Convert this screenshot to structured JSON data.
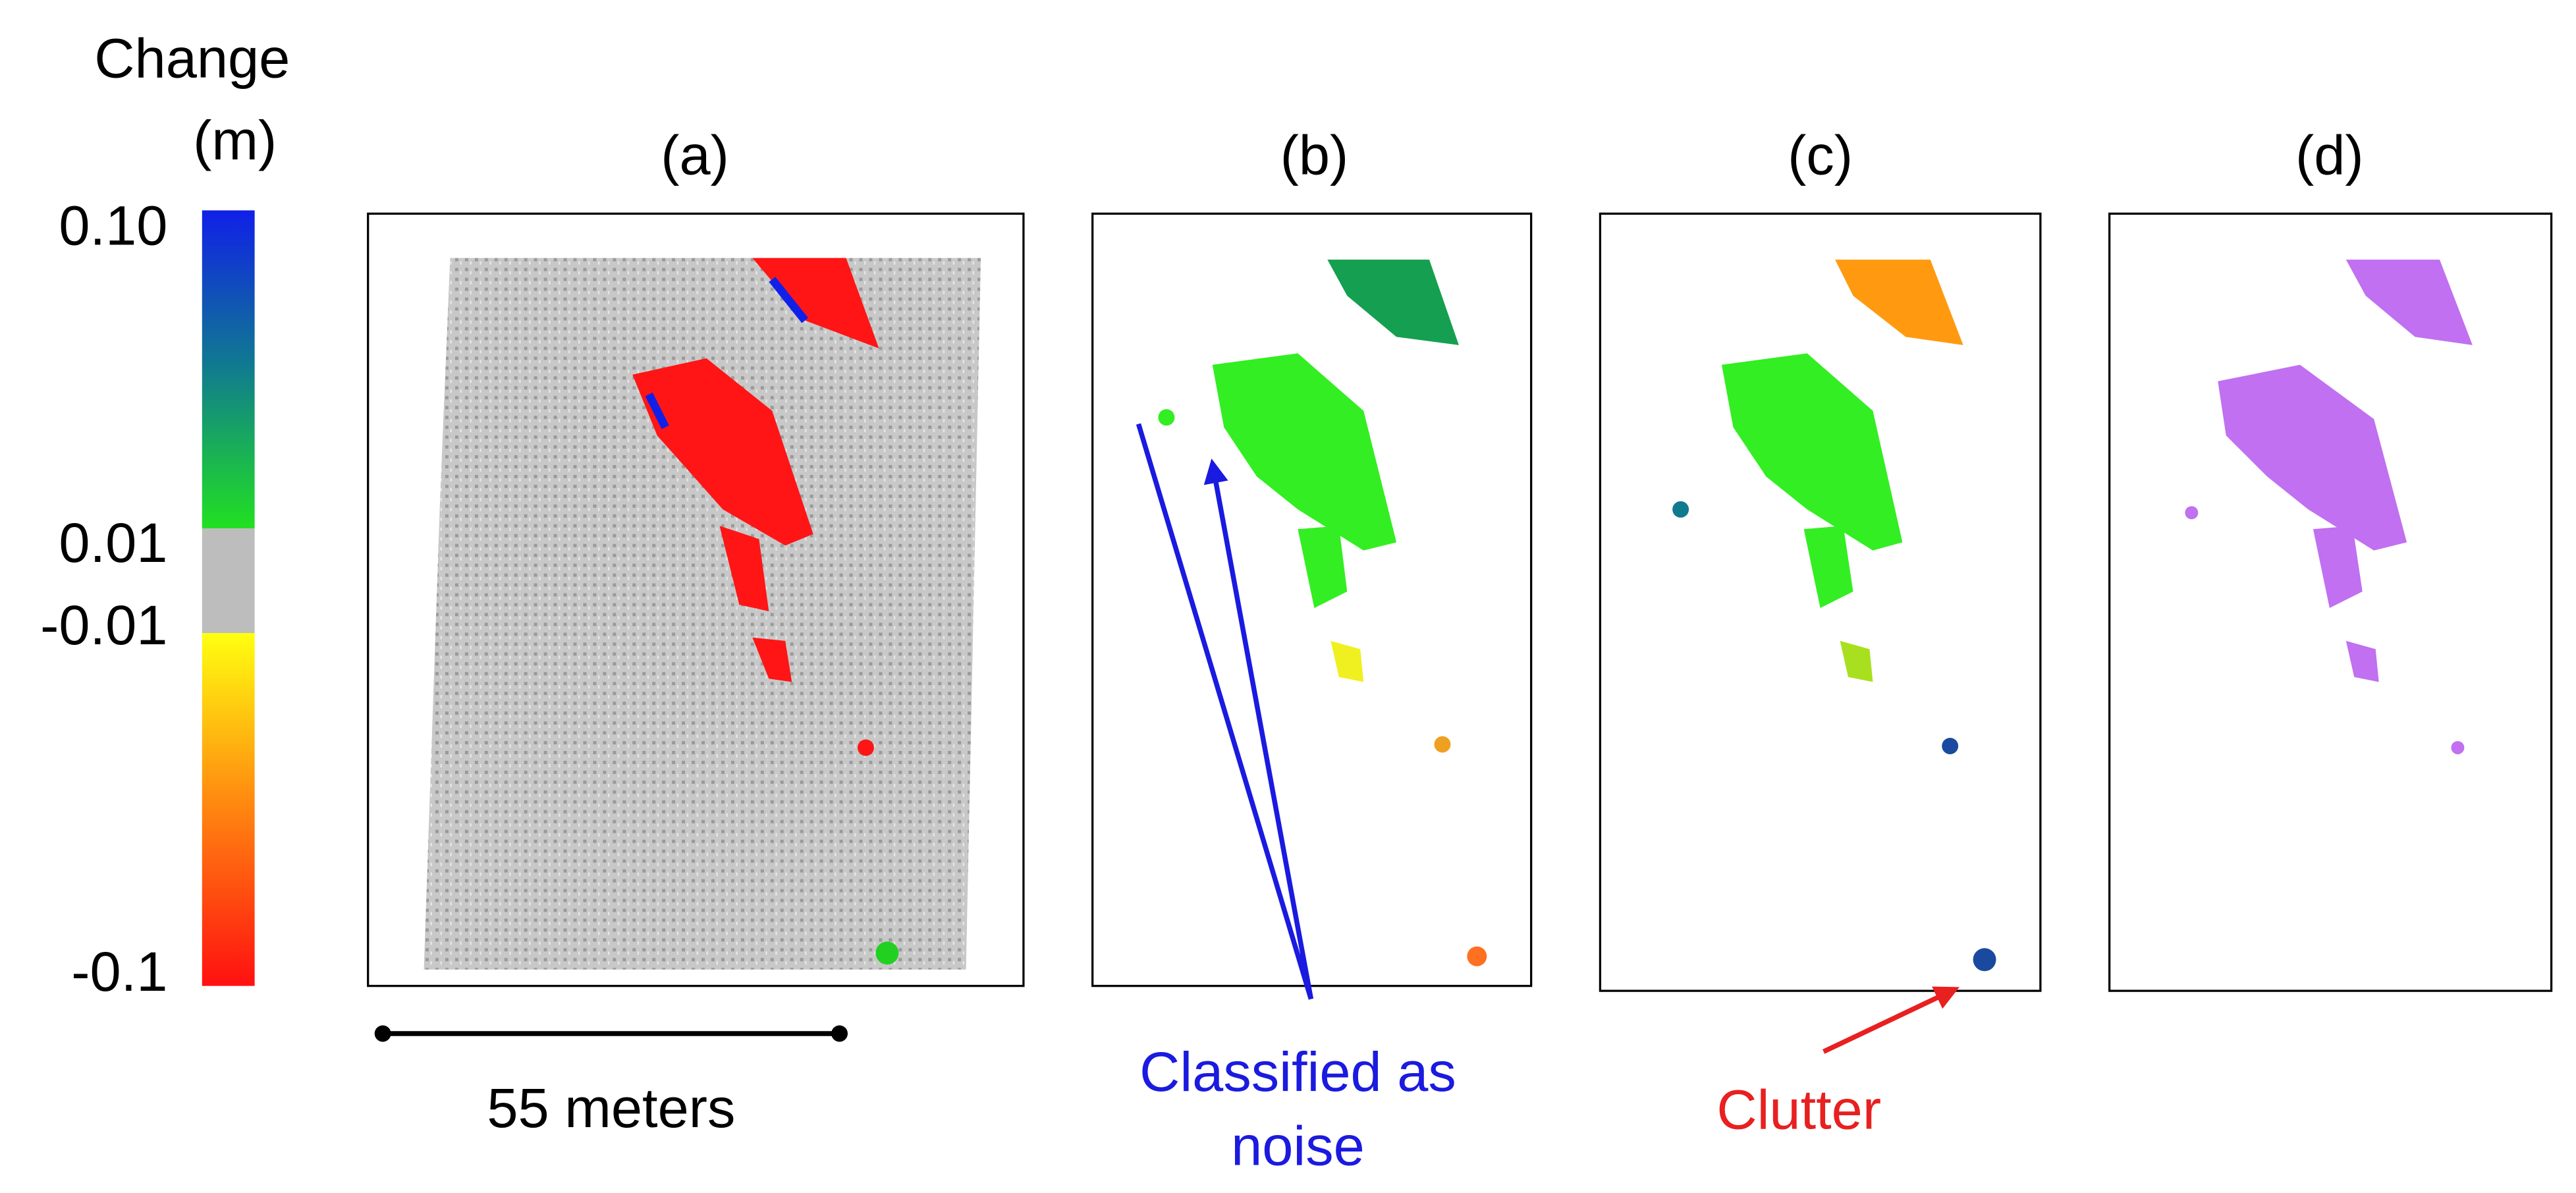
{
  "colorbar": {
    "title": "Change",
    "unit": "(m)",
    "labels": [
      "0.10",
      "0.01",
      "-0.01",
      "-0.1"
    ]
  },
  "panels": [
    "(a)",
    "(b)",
    "(c)",
    "(d)"
  ],
  "scale_bar": "55 meters",
  "annotations": {
    "noise": [
      "Classified as",
      "noise"
    ],
    "clutter": "Clutter"
  }
}
